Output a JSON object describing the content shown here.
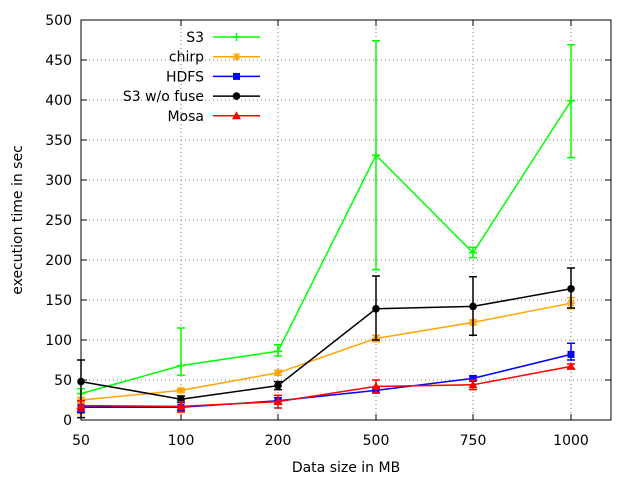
{
  "chart_data": {
    "type": "line",
    "title": "",
    "xlabel": "Data size in MB",
    "ylabel": "execution time in sec",
    "categories": [
      "50",
      "100",
      "200",
      "500",
      "750",
      "1000"
    ],
    "ylim": [
      0,
      500
    ],
    "yticks": [
      0,
      50,
      100,
      150,
      200,
      250,
      300,
      350,
      400,
      450,
      500
    ],
    "grid": true,
    "legend_position": "top-left",
    "series": [
      {
        "name": "S3",
        "color": "#00ff00",
        "marker": "plus",
        "values": [
          33,
          68,
          86,
          331,
          209,
          399
        ],
        "err_low": [
          22,
          56,
          80,
          188,
          203,
          328
        ],
        "err_high": [
          39,
          115,
          94,
          474,
          216,
          469
        ]
      },
      {
        "name": "chirp",
        "color": "#ffa500",
        "marker": "star",
        "values": [
          25,
          37,
          59,
          102,
          122,
          146
        ],
        "err_low": [
          22,
          35,
          56,
          98,
          119,
          139
        ],
        "err_high": [
          28,
          39,
          62,
          106,
          125,
          153
        ]
      },
      {
        "name": "HDFS",
        "color": "#0000ff",
        "marker": "square",
        "values": [
          16,
          16,
          24,
          37,
          52,
          82
        ],
        "err_low": [
          9,
          11,
          20,
          34,
          49,
          75
        ],
        "err_high": [
          24,
          22,
          28,
          40,
          55,
          96
        ]
      },
      {
        "name": "S3 w/o fuse",
        "color": "#000000",
        "marker": "circle",
        "values": [
          48,
          26,
          43,
          139,
          142,
          164
        ],
        "err_low": [
          3,
          23,
          38,
          100,
          106,
          140
        ],
        "err_high": [
          75,
          30,
          48,
          180,
          179,
          190
        ]
      },
      {
        "name": "Mosa",
        "color": "#ff0000",
        "marker": "triangle",
        "values": [
          18,
          17,
          23,
          42,
          44,
          67
        ],
        "err_low": [
          11,
          10,
          15,
          34,
          38,
          64
        ],
        "err_high": [
          24,
          23,
          31,
          50,
          50,
          70
        ]
      }
    ]
  }
}
